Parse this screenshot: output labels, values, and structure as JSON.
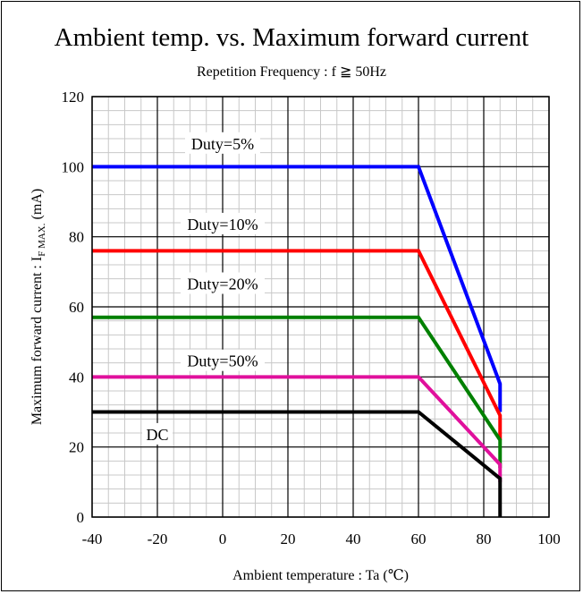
{
  "chart_data": {
    "type": "line",
    "title": "Ambient temp. vs. Maximum forward current",
    "subtitle": "Repetition Frequency : f ≧ 50Hz",
    "xlabel": "Ambient temperature : Ta (℃)",
    "ylabel_main": "Maximum forward current : I",
    "ylabel_sub": "F MAX.",
    "ylabel_unit": " (mA)",
    "xlim": [
      -40,
      100
    ],
    "ylim": [
      0,
      120
    ],
    "x_ticks": [
      -40,
      -20,
      0,
      20,
      40,
      60,
      80,
      100
    ],
    "y_ticks": [
      0,
      20,
      40,
      60,
      80,
      100,
      120
    ],
    "x_tick_labels": [
      "-40",
      "-20",
      "0",
      "20",
      "40",
      "60",
      "80",
      "100"
    ],
    "y_tick_labels": [
      "0",
      "20",
      "40",
      "60",
      "80",
      "100",
      "120"
    ],
    "grid": true,
    "series": [
      {
        "name": "Duty=5%",
        "color": "#0000ff",
        "x": [
          -40,
          60,
          85,
          85
        ],
        "y": [
          100,
          100,
          38,
          30
        ]
      },
      {
        "name": "Duty=10%",
        "color": "#ff0000",
        "x": [
          -40,
          60,
          85,
          85
        ],
        "y": [
          76,
          76,
          29,
          22
        ]
      },
      {
        "name": "Duty=20%",
        "color": "#008000",
        "x": [
          -40,
          60,
          85,
          85
        ],
        "y": [
          57,
          57,
          22,
          14
        ]
      },
      {
        "name": "Duty=50%",
        "color": "#e0109c",
        "x": [
          -40,
          60,
          85,
          85
        ],
        "y": [
          40,
          40,
          15,
          10
        ]
      },
      {
        "name": "DC",
        "color": "#000000",
        "x": [
          -40,
          60,
          85,
          85
        ],
        "y": [
          30,
          30,
          11,
          0
        ]
      }
    ],
    "annotations": [
      {
        "series": "Duty=5%",
        "text": "Duty=5%",
        "x": 0,
        "y": 106
      },
      {
        "series": "Duty=10%",
        "text": "Duty=10%",
        "x": 0,
        "y": 83
      },
      {
        "series": "Duty=20%",
        "text": "Duty=20%",
        "x": 0,
        "y": 66
      },
      {
        "series": "Duty=50%",
        "text": "Duty=50%",
        "x": 0,
        "y": 44
      },
      {
        "series": "DC",
        "text": "DC",
        "x": -20,
        "y": 23
      }
    ]
  }
}
